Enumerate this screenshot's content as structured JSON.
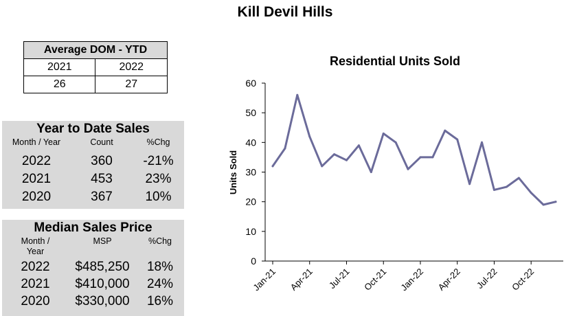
{
  "page_title": "Kill Devil Hills",
  "dom": {
    "title": "Average DOM - YTD",
    "years": [
      "2021",
      "2022"
    ],
    "values": [
      "26",
      "27"
    ]
  },
  "ytd_sales": {
    "title": "Year to Date Sales",
    "columns": [
      "Month / Year",
      "Count",
      "%Chg"
    ],
    "rows": [
      [
        "2022",
        "360",
        "-21%"
      ],
      [
        "2021",
        "453",
        "23%"
      ],
      [
        "2020",
        "367",
        "10%"
      ]
    ]
  },
  "median_price": {
    "title": "Median Sales Price",
    "columns": [
      "Month /\nYear",
      "MSP",
      "%Chg"
    ],
    "rows": [
      [
        "2022",
        "$485,250",
        "18%"
      ],
      [
        "2021",
        "$410,000",
        "24%"
      ],
      [
        "2020",
        "$330,000",
        "16%"
      ]
    ]
  },
  "colors": {
    "line": "#6b6b9a",
    "panel_bg": "#d9d9d9"
  },
  "chart_data": {
    "type": "line",
    "title": "Residential Units Sold",
    "xlabel": "",
    "ylabel": "Units Sold",
    "ylim": [
      0,
      60
    ],
    "yticks": [
      0,
      10,
      20,
      30,
      40,
      50,
      60
    ],
    "x": [
      "Jan-21",
      "Feb-21",
      "Mar-21",
      "Apr-21",
      "May-21",
      "Jun-21",
      "Jul-21",
      "Aug-21",
      "Sep-21",
      "Oct-21",
      "Nov-21",
      "Dec-21",
      "Jan-22",
      "Feb-22",
      "Mar-22",
      "Apr-22",
      "May-22",
      "Jun-22",
      "Jul-22",
      "Aug-22",
      "Sep-22",
      "Oct-22",
      "Nov-22",
      "Dec-22"
    ],
    "xtick_labels": [
      "Jan-21",
      "Apr-21",
      "Jul-21",
      "Oct-21",
      "Jan-22",
      "Apr-22",
      "Jul-22",
      "Oct-22"
    ],
    "xtick_indices": [
      0,
      3,
      6,
      9,
      12,
      15,
      18,
      21
    ],
    "series": [
      {
        "name": "Residential Units Sold",
        "values": [
          32,
          38,
          56,
          42,
          32,
          36,
          34,
          39,
          30,
          43,
          40,
          31,
          35,
          35,
          44,
          41,
          26,
          40,
          24,
          25,
          28,
          23,
          19,
          20
        ]
      }
    ]
  }
}
